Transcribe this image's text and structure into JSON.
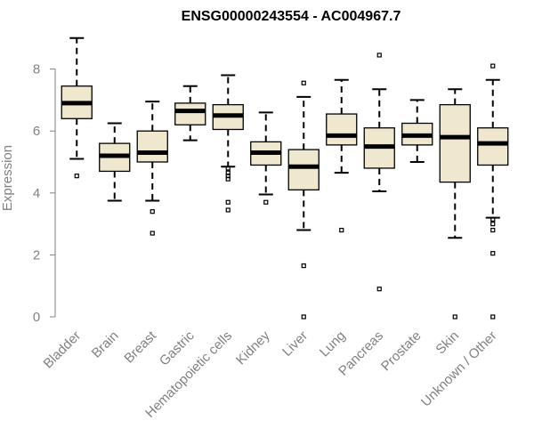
{
  "chart_data": {
    "type": "boxplot",
    "title": "ENSG00000243554 - AC004967.7",
    "xlabel": "",
    "ylabel": "Expression",
    "ylim": [
      -0.2,
      9.0
    ],
    "yticks": [
      0,
      2,
      4,
      6,
      8
    ],
    "grid": false,
    "colors": {
      "box_fill": "#efe8cf",
      "box_stroke": "#000000",
      "axis": "#808080"
    },
    "categories": [
      "Bladder",
      "Brain",
      "Breast",
      "Gastric",
      "Hematopoietic cells",
      "Kidney",
      "Liver",
      "Lung",
      "Pancreas",
      "Prostate",
      "Skin",
      "Unknown / Other"
    ],
    "boxes": [
      {
        "min": 5.1,
        "q1": 6.4,
        "median": 6.9,
        "q3": 7.45,
        "max": 9.0,
        "outliers": [
          4.55
        ]
      },
      {
        "min": 3.75,
        "q1": 4.7,
        "median": 5.2,
        "q3": 5.6,
        "max": 6.25,
        "outliers": []
      },
      {
        "min": 3.75,
        "q1": 5.0,
        "median": 5.3,
        "q3": 6.0,
        "max": 6.95,
        "outliers": [
          3.4,
          2.7
        ]
      },
      {
        "min": 5.7,
        "q1": 6.2,
        "median": 6.65,
        "q3": 6.9,
        "max": 7.45,
        "outliers": []
      },
      {
        "min": 4.85,
        "q1": 6.05,
        "median": 6.5,
        "q3": 6.85,
        "max": 7.8,
        "outliers": [
          4.8,
          4.65,
          4.55,
          4.45,
          3.7,
          3.45
        ]
      },
      {
        "min": 3.95,
        "q1": 4.9,
        "median": 5.3,
        "q3": 5.65,
        "max": 6.6,
        "outliers": [
          3.7
        ]
      },
      {
        "min": 2.8,
        "q1": 4.1,
        "median": 4.85,
        "q3": 5.4,
        "max": 7.1,
        "outliers": [
          7.55,
          1.65,
          0.0
        ]
      },
      {
        "min": 4.65,
        "q1": 5.55,
        "median": 5.85,
        "q3": 6.55,
        "max": 7.65,
        "outliers": [
          2.8
        ]
      },
      {
        "min": 4.05,
        "q1": 4.8,
        "median": 5.5,
        "q3": 6.1,
        "max": 7.35,
        "outliers": [
          8.45,
          0.9
        ]
      },
      {
        "min": 5.0,
        "q1": 5.55,
        "median": 5.85,
        "q3": 6.25,
        "max": 7.0,
        "outliers": []
      },
      {
        "min": 2.55,
        "q1": 4.35,
        "median": 5.8,
        "q3": 6.85,
        "max": 7.35,
        "outliers": [
          0.0
        ]
      },
      {
        "min": 3.2,
        "q1": 4.9,
        "median": 5.6,
        "q3": 6.1,
        "max": 7.65,
        "outliers": [
          8.1,
          3.15,
          3.0,
          2.8,
          2.05,
          0.0
        ]
      }
    ]
  }
}
